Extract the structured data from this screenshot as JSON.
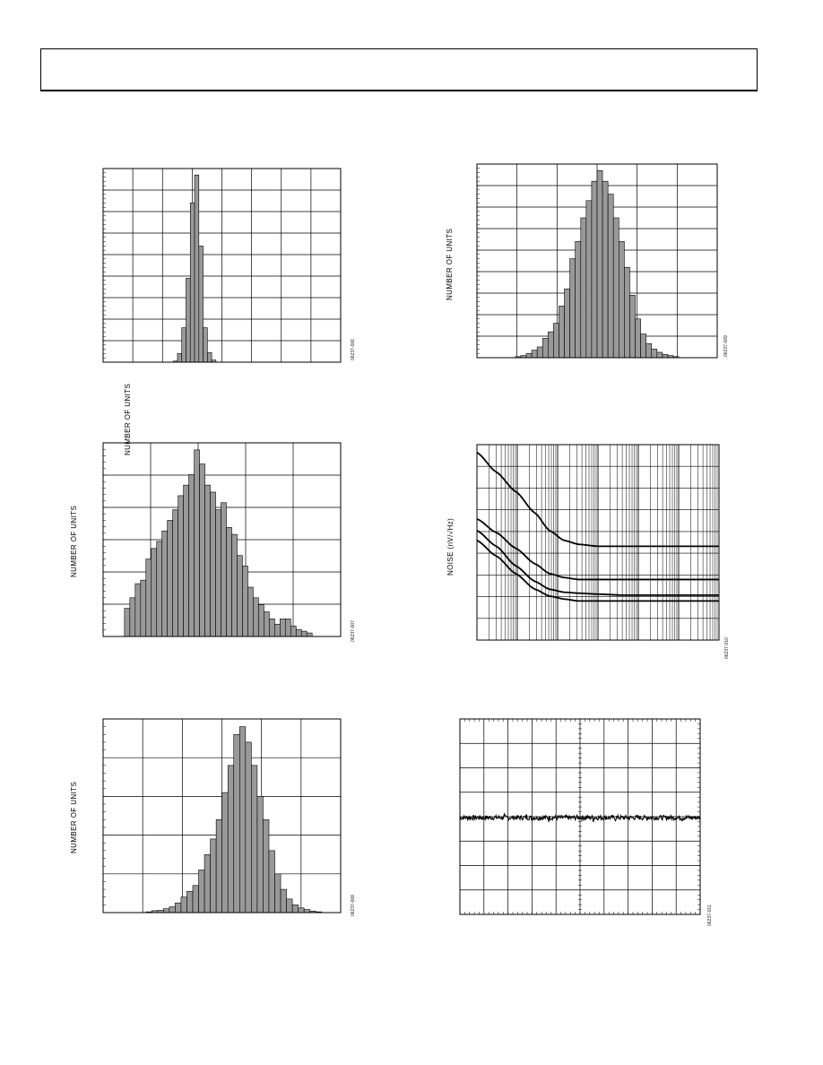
{
  "page": {
    "header": ""
  },
  "colors": {
    "bar_fill": "#999999",
    "line": "#000000",
    "grid": "#000000",
    "background": "#ffffff"
  },
  "chart_data": [
    {
      "id": "c1",
      "type": "bar",
      "ylabel": "NUMBER OF UNITS",
      "figure_id": "06237-006",
      "ylim": [
        0,
        9
      ],
      "values": [
        0.05,
        0.4,
        1.6,
        3.9,
        7.4,
        8.7,
        5.4,
        1.6,
        0.45,
        0.1
      ],
      "grid": {
        "x_lines": 8,
        "y_lines": 9
      },
      "bar_range": [
        0.295,
        0.475
      ]
    },
    {
      "id": "c2",
      "type": "bar",
      "ylabel": "NUMBER OF UNITS",
      "figure_id": "06237-009",
      "ylim": [
        0,
        9
      ],
      "values": [
        0.05,
        0.1,
        0.2,
        0.35,
        0.5,
        0.9,
        1.2,
        1.6,
        2.4,
        3.2,
        4.6,
        5.4,
        6.5,
        7.3,
        8.2,
        8.7,
        8.2,
        7.6,
        6.5,
        5.4,
        4.2,
        2.9,
        1.8,
        1.1,
        0.65,
        0.4,
        0.25,
        0.15,
        0.1,
        0.05
      ],
      "grid": {
        "x_lines": 6,
        "y_lines": 9
      },
      "bar_range": [
        0.16,
        0.84
      ]
    },
    {
      "id": "c3",
      "type": "bar",
      "ylabel": "NUMBER OF UNITS",
      "figure_id": "06237-007",
      "ylim": [
        0,
        5.5
      ],
      "values": [
        0.8,
        1.1,
        1.5,
        1.6,
        2.2,
        2.5,
        2.7,
        3.0,
        3.3,
        3.6,
        4.0,
        4.3,
        4.6,
        5.3,
        4.9,
        4.3,
        4.1,
        3.6,
        3.8,
        3.1,
        2.9,
        2.3,
        2.0,
        1.4,
        1.1,
        0.9,
        0.7,
        0.5,
        0.35,
        0.5,
        0.5,
        0.3,
        0.2,
        0.15,
        0.1
      ],
      "grid": {
        "x_lines": 5,
        "y_lines": 6
      },
      "bar_range": [
        0.09,
        0.88
      ]
    },
    {
      "id": "c4",
      "type": "line",
      "ylabel": "NOISE (nV/√Hz)",
      "figure_id": "06237-010",
      "scale": "log-x",
      "grid": {
        "decades": 6,
        "y_lines": 9
      },
      "series": [
        {
          "x_frac": [
            0,
            0.08,
            0.16,
            0.24,
            0.3,
            0.36,
            0.42,
            0.5,
            0.6,
            1
          ],
          "values": [
            0.96,
            0.86,
            0.76,
            0.65,
            0.56,
            0.51,
            0.49,
            0.48,
            0.48,
            0.48
          ]
        },
        {
          "x_frac": [
            0,
            0.08,
            0.16,
            0.24,
            0.3,
            0.36,
            0.42,
            0.5,
            0.6,
            1
          ],
          "values": [
            0.62,
            0.55,
            0.47,
            0.39,
            0.34,
            0.32,
            0.31,
            0.31,
            0.31,
            0.31
          ]
        },
        {
          "x_frac": [
            0,
            0.08,
            0.16,
            0.24,
            0.3,
            0.36,
            0.42,
            0.5,
            0.6,
            1
          ],
          "values": [
            0.56,
            0.48,
            0.38,
            0.3,
            0.26,
            0.245,
            0.24,
            0.235,
            0.23,
            0.23
          ]
        },
        {
          "x_frac": [
            0,
            0.08,
            0.16,
            0.24,
            0.3,
            0.36,
            0.42,
            0.5,
            0.6,
            1
          ],
          "values": [
            0.51,
            0.43,
            0.34,
            0.26,
            0.225,
            0.21,
            0.2,
            0.2,
            0.2,
            0.2
          ]
        }
      ]
    },
    {
      "id": "c5",
      "type": "bar",
      "ylabel": "NUMBER OF UNITS",
      "figure_id": "06237-008",
      "ylim": [
        0,
        5.0
      ],
      "values": [
        0.02,
        0.05,
        0.06,
        0.1,
        0.15,
        0.25,
        0.4,
        0.55,
        0.7,
        1.1,
        1.5,
        1.9,
        2.4,
        3.1,
        3.8,
        4.6,
        4.8,
        4.4,
        3.8,
        3.0,
        2.4,
        1.6,
        1.0,
        0.6,
        0.35,
        0.2,
        0.12,
        0.08,
        0.04,
        0.02
      ],
      "grid": {
        "x_lines": 6,
        "y_lines": 5
      },
      "bar_range": [
        0.18,
        0.92
      ]
    },
    {
      "id": "c6",
      "type": "line",
      "ylabel": "",
      "figure_id": "06237-011",
      "scale": "linear",
      "grid": {
        "x_lines": 10,
        "y_lines": 8
      },
      "level": 0.495,
      "noise_amplitude": 0.012
    }
  ]
}
